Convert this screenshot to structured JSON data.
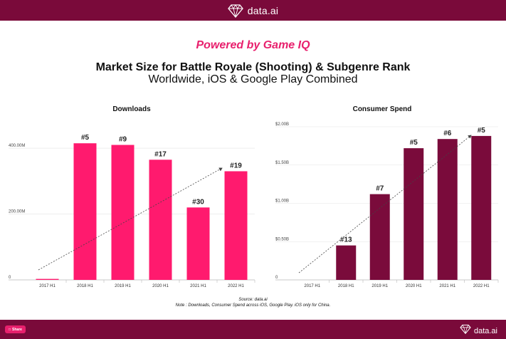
{
  "header": {
    "brand": "data.ai"
  },
  "kicker": "Powered by Game IQ",
  "title": "Market Size for Battle Royale (Shooting)  & Subgenre Rank",
  "subtitle": "Worldwide, iOS & Google Play Combined",
  "colors": {
    "brand_bar": "#7a0a3a",
    "downloads_bar": "#ff1a6e",
    "spend_bar": "#7a0b3b",
    "accent": "#e8206d"
  },
  "chart_data": [
    {
      "type": "bar",
      "title": "Downloads",
      "categories": [
        "2017 H1",
        "2018 H1",
        "2019 H1",
        "2020 H1",
        "2021 H1",
        "2022 H1"
      ],
      "values": [
        3,
        415,
        410,
        365,
        220,
        330
      ],
      "ranks": [
        "",
        "#5",
        "#9",
        "#17",
        "#30",
        "#19"
      ],
      "ylim": [
        0,
        450
      ],
      "yticks": [
        0,
        200,
        400
      ],
      "ytick_labels": [
        "0",
        "200.00M",
        "400.00M"
      ],
      "xlabel": "",
      "ylabel": "",
      "trend_arrow": true,
      "grid": true
    },
    {
      "type": "bar",
      "title": "Consumer Spend",
      "categories": [
        "2017 H1",
        "2018 H1",
        "2019 H1",
        "2020 H1",
        "2021 H1",
        "2022 H1"
      ],
      "values": [
        0,
        0.45,
        1.12,
        1.72,
        1.84,
        1.88
      ],
      "ranks": [
        "",
        "#13",
        "#7",
        "#5",
        "#6",
        "#5"
      ],
      "ylim": [
        0,
        2.0
      ],
      "yticks": [
        0,
        0.5,
        1.0,
        1.5,
        2.0
      ],
      "ytick_labels": [
        "0",
        "$0.50B",
        "$1.00B",
        "$1.50B",
        "$2.00B"
      ],
      "xlabel": "",
      "ylabel": "",
      "trend_arrow": true,
      "grid": true
    }
  ],
  "footer": {
    "source": "Source: data.ai",
    "note": "Note : Downloads, Consumer Spend across iOS, Google Play. iOS only for China.",
    "share_label": "Share",
    "brand": "data.ai"
  }
}
